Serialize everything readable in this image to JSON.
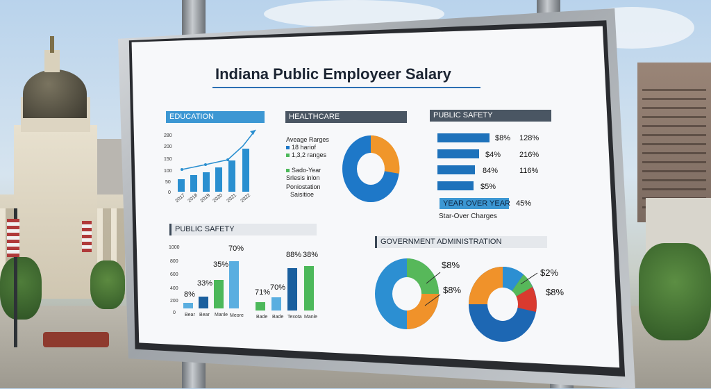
{
  "sign": {
    "title": "Indiana Public Employeer Salary"
  },
  "education": {
    "header": "EDUCATION",
    "y_ticks": [
      "280",
      "200",
      "150",
      "100",
      "50",
      "0"
    ],
    "x_labels": [
      "2017",
      "2018",
      "2019",
      "2020",
      "2021",
      "2022"
    ],
    "colors": {
      "bars": "#2a8fd0",
      "trend": "#2a8fd0"
    }
  },
  "healthcare": {
    "header": "HEALTHCARE",
    "legend": [
      "Aveage Rarges",
      "18 hariof",
      "1,3,2 ranges",
      "Sado-Year",
      "Srlesis inlon",
      "Poniostation",
      "Saisitioe"
    ],
    "colors": {
      "blue": "#1e78c8",
      "orange": "#f0962a"
    }
  },
  "public_safety_top": {
    "header": "PUBLIC SAFETY",
    "rows": [
      {
        "a": "$8%",
        "b": "128%"
      },
      {
        "a": "$4%",
        "b": "216%"
      },
      {
        "a": "84%",
        "b": "116%"
      },
      {
        "a": "$5%",
        "b": ""
      }
    ],
    "highlight_label": "YEAR OVER YEAR",
    "highlight_value": "45%",
    "footer": "Star-Over Charges",
    "colors": {
      "bars": "#1e72bb",
      "highlight": "#3c97d3"
    }
  },
  "public_safety_bottom": {
    "header": "PUBLIC SAFETY",
    "y_ticks": [
      "1000",
      "800",
      "600",
      "400",
      "200",
      "0"
    ],
    "left_group": {
      "labels": [
        "8%",
        "33%",
        "35%",
        "70%"
      ],
      "x_labels": [
        "Bear",
        "Bear",
        "Manle",
        "Meore"
      ]
    },
    "right_group": {
      "labels": [
        "71%",
        "70%",
        "88%",
        "38%"
      ],
      "x_labels": [
        "Bade",
        "Bade",
        "Texota",
        "Manle"
      ]
    },
    "colors": {
      "light": "#5aaee0",
      "dark": "#1a5f9e",
      "green": "#4cb85a"
    }
  },
  "government_admin": {
    "header": "GOVERNMENT ADMINISTRATION",
    "left_labels": [
      "$8%",
      "$8%"
    ],
    "right_labels": [
      "$2%",
      "$8%"
    ],
    "colors": {
      "blue": "#2c8fd2",
      "green": "#57b85a",
      "orange": "#f0922a",
      "red": "#d93a2f",
      "navy": "#1d67b3"
    }
  }
}
